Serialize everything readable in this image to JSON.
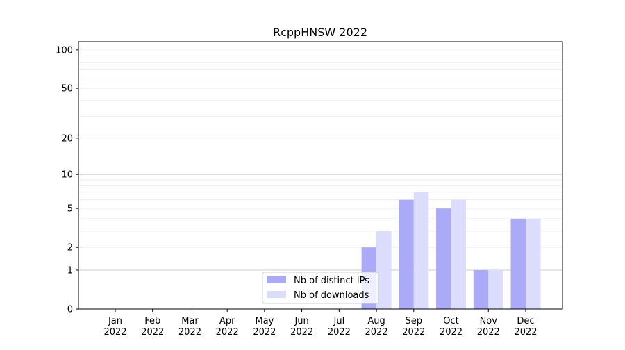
{
  "chart_data": {
    "type": "bar",
    "title": "RcppHNSW 2022",
    "xlabel": "",
    "ylabel": "",
    "y_scale": "log(1+y)",
    "ylim": [
      0,
      116
    ],
    "y_ticks": [
      0,
      1,
      2,
      5,
      10,
      20,
      50,
      100
    ],
    "grid": true,
    "legend_position": "bottom-center",
    "categories": [
      "Jan\n2022",
      "Feb\n2022",
      "Mar\n2022",
      "Apr\n2022",
      "May\n2022",
      "Jun\n2022",
      "Jul\n2022",
      "Aug\n2022",
      "Sep\n2022",
      "Oct\n2022",
      "Nov\n2022",
      "Dec\n2022"
    ],
    "series": [
      {
        "name": "Nb of distinct IPs",
        "color": "#aaaaf9",
        "values": [
          0,
          0,
          0,
          0,
          0,
          0,
          0,
          2,
          6,
          5,
          1,
          4
        ]
      },
      {
        "name": "Nb of downloads",
        "color": "#dcdcfc",
        "values": [
          0,
          0,
          0,
          0,
          0,
          0,
          0,
          3,
          7,
          6,
          1,
          4
        ]
      }
    ]
  }
}
